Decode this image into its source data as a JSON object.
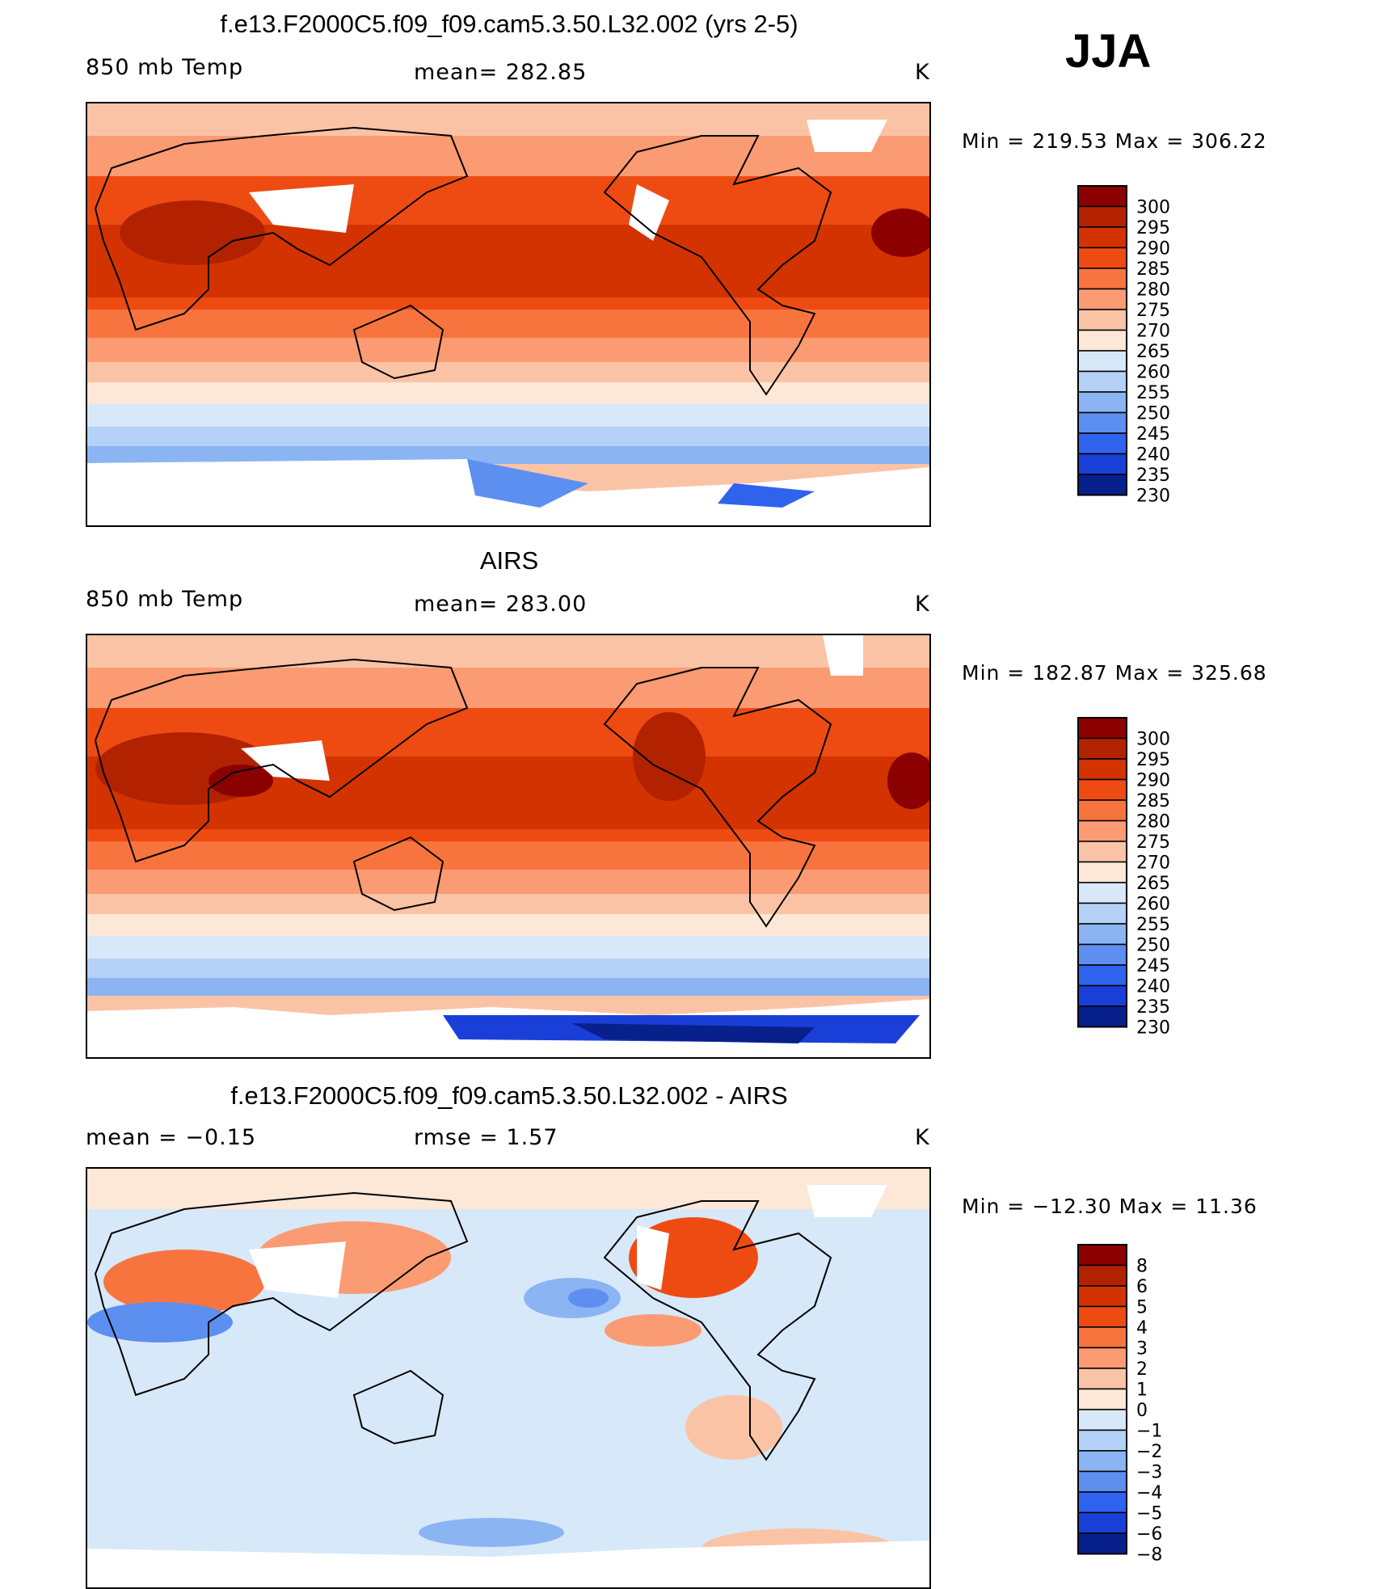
{
  "season": "JJA",
  "panels": [
    {
      "title": "f.e13.F2000C5.f09_f09.cam5.3.50.L32.002 (yrs 2-5)",
      "left_label": "850 mb Temp",
      "center_label": "mean= 282.85",
      "unit": "K",
      "minmax": "Min = 219.53 Max = 306.22",
      "colorbar_labels": [
        "300",
        "295",
        "290",
        "285",
        "280",
        "275",
        "270",
        "265",
        "260",
        "255",
        "250",
        "245",
        "240",
        "235",
        "230"
      ],
      "colorbar_colors": [
        "#8b0000",
        "#b22200",
        "#d33300",
        "#ee4b13",
        "#f8743f",
        "#fb9b73",
        "#fbc3a6",
        "#fde7d6",
        "#d7e8f8",
        "#b5d1f7",
        "#8bb4f3",
        "#5d8ff0",
        "#2f63ee",
        "#1a3fd8",
        "#08208c"
      ]
    },
    {
      "title": "AIRS",
      "left_label": "850 mb Temp",
      "center_label": "mean= 283.00",
      "unit": "K",
      "minmax": "Min = 182.87 Max = 325.68",
      "colorbar_labels": [
        "300",
        "295",
        "290",
        "285",
        "280",
        "275",
        "270",
        "265",
        "260",
        "255",
        "250",
        "245",
        "240",
        "235",
        "230"
      ],
      "colorbar_colors": [
        "#8b0000",
        "#b22200",
        "#d33300",
        "#ee4b13",
        "#f8743f",
        "#fb9b73",
        "#fbc3a6",
        "#fde7d6",
        "#d7e8f8",
        "#b5d1f7",
        "#8bb4f3",
        "#5d8ff0",
        "#2f63ee",
        "#1a3fd8",
        "#08208c"
      ]
    },
    {
      "title": "f.e13.F2000C5.f09_f09.cam5.3.50.L32.002 - AIRS",
      "left_label": "mean =   −0.15",
      "center_label": "rmse =    1.57",
      "unit": "K",
      "minmax": "Min = −12.30 Max =   11.36",
      "colorbar_labels": [
        "8",
        "6",
        "5",
        "4",
        "3",
        "2",
        "1",
        "0",
        "−1",
        "−2",
        "−3",
        "−4",
        "−5",
        "−6",
        "−8"
      ],
      "colorbar_colors": [
        "#8b0000",
        "#b22200",
        "#d33300",
        "#ee4b13",
        "#f8743f",
        "#fb9b73",
        "#fbc3a6",
        "#fde7d6",
        "#d7e8f8",
        "#b5d1f7",
        "#8bb4f3",
        "#5d8ff0",
        "#2f63ee",
        "#1a3fd8",
        "#08208c"
      ]
    }
  ]
}
